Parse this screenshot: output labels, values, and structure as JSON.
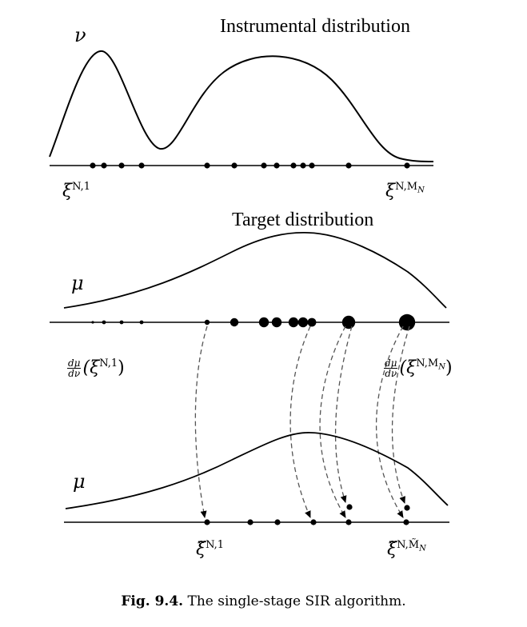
{
  "panels": {
    "instrumental": {
      "title": "Instrumental distribution",
      "density_symbol": "ν",
      "first_label": "ξ",
      "first_label_sup": "N,1",
      "last_label": "ξ",
      "last_label_sup": "N,M",
      "last_label_subsup": "N"
    },
    "target": {
      "title": "Target distribution",
      "density_symbol": "μ",
      "weight_num": "dμ",
      "weight_den": "dν",
      "first_label": "(ξ",
      "first_label_sup": "N,1",
      "first_label_close": ")",
      "last_label": "(ξ",
      "last_label_sup": "N,M",
      "last_label_subsup": "N",
      "last_label_close": ")"
    },
    "resampled": {
      "density_symbol": "μ",
      "first_label": "ξ̃",
      "first_label_sup": "N,1",
      "last_label": "ξ̃",
      "last_label_sup": "N,M̃",
      "last_label_subsup": "N"
    }
  },
  "caption": {
    "number": "Fig. 9.4.",
    "text": "The single-stage SIR algorithm."
  }
}
